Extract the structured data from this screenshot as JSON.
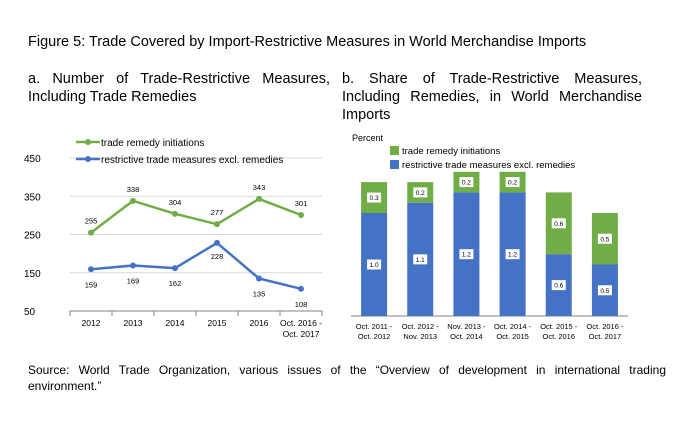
{
  "figure": {
    "title": "Figure 5: Trade Covered by Import-Restrictive Measures in World Merchandise Imports",
    "source": "Source: World Trade Organization, various issues of the “Overview of development in international trading environment.”"
  },
  "chart_data": [
    {
      "type": "line",
      "title": "a. Number of Trade-Restrictive Measures, Including Trade Remedies",
      "categories": [
        "2012",
        "2013",
        "2014",
        "2015",
        "2016",
        "Oct. 2016 - Oct. 2017"
      ],
      "ylim": [
        50,
        450
      ],
      "yticks": [
        "50",
        "150",
        "250",
        "350",
        "450"
      ],
      "grid": true,
      "legend": "top-left",
      "series": [
        {
          "name": "trade remedy initiations",
          "color": "#70ad47",
          "values": [
            255,
            338,
            304,
            277,
            343,
            301
          ],
          "labels": [
            "255",
            "338",
            "304",
            "277",
            "343",
            "301"
          ]
        },
        {
          "name": "restrictive trade measures excl. remedies",
          "color": "#4472c4",
          "values": [
            159,
            169,
            162,
            228,
            135,
            108
          ],
          "labels": [
            "159",
            "169",
            "162",
            "228",
            "135",
            "108"
          ]
        }
      ]
    },
    {
      "type": "bar",
      "stacked": true,
      "title": "b. Share of Trade-Restrictive Measures, Including Remedies, in World Merchandise Imports",
      "ylabel": "Percent",
      "categories": [
        "Oct. 2011 - Oct. 2012",
        "Oct. 2012 - Nov. 2013",
        "Nov. 2013 - Oct. 2014",
        "Oct. 2014 - Oct. 2015",
        "Oct. 2015 - Oct. 2016",
        "Oct. 2016 - Oct. 2017"
      ],
      "legend": "top-left",
      "series": [
        {
          "name": "restrictive trade measures excl. remedies",
          "color": "#4472c4",
          "values": [
            1.0,
            1.1,
            1.2,
            1.2,
            0.6,
            0.5
          ],
          "labels": [
            "1.0",
            "1.1",
            "1.2",
            "1.2",
            "0.6",
            "0.5"
          ]
        },
        {
          "name": "trade remedy initiations",
          "color": "#70ad47",
          "values": [
            0.3,
            0.2,
            0.2,
            0.2,
            0.6,
            0.5
          ],
          "labels": [
            "0.3",
            "0.2",
            "0.2",
            "0.2",
            "0.6",
            "0.5"
          ]
        }
      ]
    }
  ]
}
